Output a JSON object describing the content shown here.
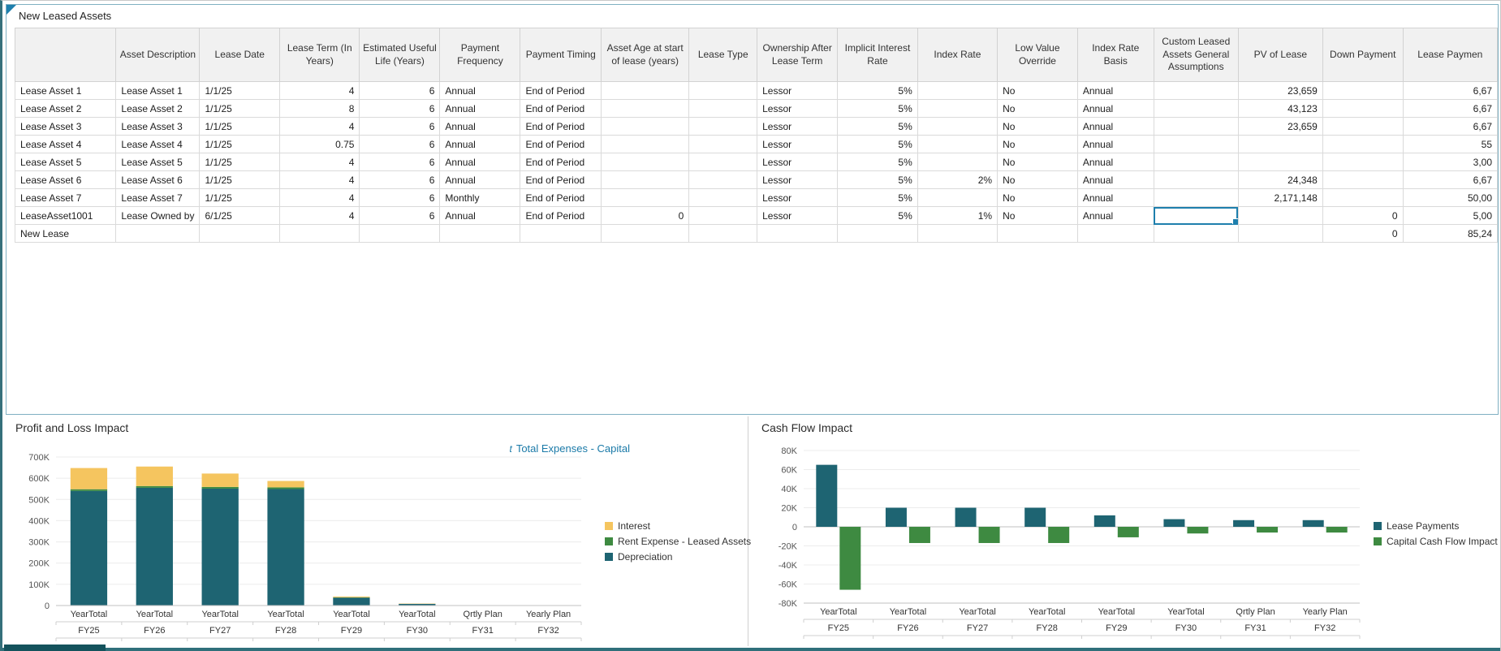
{
  "grid": {
    "title": "New Leased Assets",
    "columns": [
      "",
      "Asset Description",
      "Lease Date",
      "Lease Term (In Years)",
      "Estimated Useful Life (Years)",
      "Payment Frequency",
      "Payment Timing",
      "Asset Age at start of lease (years)",
      "Lease Type",
      "Ownership After Lease Term",
      "Implicit Interest Rate",
      "Index Rate",
      "Low Value Override",
      "Index Rate Basis",
      "Custom Leased Assets General Assumptions",
      "PV of Lease",
      "Down Payment",
      "Lease Paymen"
    ],
    "rows": [
      {
        "label": "Lease Asset 1",
        "cells": [
          "Lease Asset 1",
          "1/1/25",
          "4",
          "6",
          "Annual",
          "End of Period",
          "",
          "",
          "Lessor",
          "5%",
          "",
          "No",
          "Annual",
          "",
          "23,659",
          "",
          "6,67"
        ]
      },
      {
        "label": "Lease Asset 2",
        "cells": [
          "Lease Asset 2",
          "1/1/25",
          "8",
          "6",
          "Annual",
          "End of Period",
          "",
          "",
          "Lessor",
          "5%",
          "",
          "No",
          "Annual",
          "",
          "43,123",
          "",
          "6,67"
        ]
      },
      {
        "label": "Lease Asset 3",
        "cells": [
          "Lease Asset 3",
          "1/1/25",
          "4",
          "6",
          "Annual",
          "End of Period",
          "",
          "",
          "Lessor",
          "5%",
          "",
          "No",
          "Annual",
          "",
          "23,659",
          "",
          "6,67"
        ]
      },
      {
        "label": "Lease Asset 4",
        "cells": [
          "Lease Asset 4",
          "1/1/25",
          "0.75",
          "6",
          "Annual",
          "End of Period",
          "",
          "",
          "Lessor",
          "5%",
          "",
          "No",
          "Annual",
          "",
          "",
          "",
          "55"
        ]
      },
      {
        "label": "Lease Asset 5",
        "cells": [
          "Lease Asset 5",
          "1/1/25",
          "4",
          "6",
          "Annual",
          "End of Period",
          "",
          "",
          "Lessor",
          "5%",
          "",
          "No",
          "Annual",
          "",
          "",
          "",
          "3,00"
        ]
      },
      {
        "label": "Lease Asset 6",
        "cells": [
          "Lease Asset 6",
          "1/1/25",
          "4",
          "6",
          "Annual",
          "End of Period",
          "",
          "",
          "Lessor",
          "5%",
          "2%",
          "No",
          "Annual",
          "",
          "24,348",
          "",
          "6,67"
        ]
      },
      {
        "label": "Lease Asset 7",
        "cells": [
          "Lease Asset 7",
          "1/1/25",
          "4",
          "6",
          "Monthly",
          "End of Period",
          "",
          "",
          "Lessor",
          "5%",
          "",
          "No",
          "Annual",
          "",
          "2,171,148",
          "",
          "50,00"
        ]
      },
      {
        "label": "LeaseAsset1001",
        "cells": [
          "Lease Owned by",
          "6/1/25",
          "4",
          "6",
          "Annual",
          "End of Period",
          "0",
          "",
          "Lessor",
          "5%",
          "1%",
          "No",
          "Annual",
          "",
          "",
          "0",
          "5,00"
        ]
      },
      {
        "label": "New Lease",
        "muted": true,
        "cells": [
          "",
          "",
          "",
          "",
          "",
          "",
          "",
          "",
          "",
          "",
          "",
          "",
          "",
          "",
          "",
          "0",
          "85,24"
        ]
      }
    ],
    "selected": {
      "row": 7,
      "col": 14
    },
    "readonly_column": "Custom Leased Assets General Assumptions"
  },
  "chart_data": [
    {
      "type": "bar",
      "variant": "stacked",
      "title": "Profit and Loss Impact",
      "link_icon": "t",
      "link_label": "Total Expenses - Capital",
      "categories": [
        [
          "YearTotal",
          "FY25"
        ],
        [
          "YearTotal",
          "FY26"
        ],
        [
          "YearTotal",
          "FY27"
        ],
        [
          "YearTotal",
          "FY28"
        ],
        [
          "YearTotal",
          "FY29"
        ],
        [
          "YearTotal",
          "FY30"
        ],
        [
          "Qrtly Plan",
          "FY31"
        ],
        [
          "Yearly Plan",
          "FY32"
        ]
      ],
      "series": [
        {
          "name": "Interest",
          "color": "#F5C55F",
          "values": [
            100000,
            92000,
            63000,
            30000,
            4000,
            1500,
            0,
            0
          ]
        },
        {
          "name": "Rent Expense - Leased Assets",
          "color": "#3E8A41",
          "values": [
            8000,
            8000,
            8000,
            8000,
            1500,
            0,
            0,
            0
          ]
        },
        {
          "name": "Depreciation",
          "color": "#1E6472",
          "values": [
            540000,
            555000,
            551000,
            549000,
            37000,
            8000,
            0,
            0
          ]
        }
      ],
      "ylim": [
        0,
        700000
      ],
      "ystep": 100000,
      "legend_position": "right",
      "grid": true
    },
    {
      "type": "bar",
      "variant": "grouped",
      "title": "Cash Flow Impact",
      "categories": [
        [
          "YearTotal",
          "FY25"
        ],
        [
          "YearTotal",
          "FY26"
        ],
        [
          "YearTotal",
          "FY27"
        ],
        [
          "YearTotal",
          "FY28"
        ],
        [
          "YearTotal",
          "FY29"
        ],
        [
          "YearTotal",
          "FY30"
        ],
        [
          "Qrtly Plan",
          "FY31"
        ],
        [
          "Yearly Plan",
          "FY32"
        ]
      ],
      "series": [
        {
          "name": "Lease Payments",
          "color": "#1E6472",
          "values": [
            65000,
            20000,
            20000,
            20000,
            12000,
            8000,
            7000,
            7000
          ]
        },
        {
          "name": "Capital Cash Flow Impact",
          "color": "#3E8A41",
          "values": [
            -66000,
            -17000,
            -17000,
            -17000,
            -11000,
            -7000,
            -6000,
            -6000
          ]
        }
      ],
      "ylim": [
        -80000,
        80000
      ],
      "ystep": 20000,
      "legend_position": "right",
      "grid": true
    }
  ],
  "colors": {
    "selection_blue": "#1E7FAD",
    "link_blue": "#1B7AA8",
    "panel_border_blue": "#7FB0C2",
    "bottom_bar_teal": "#2F6F7A"
  }
}
